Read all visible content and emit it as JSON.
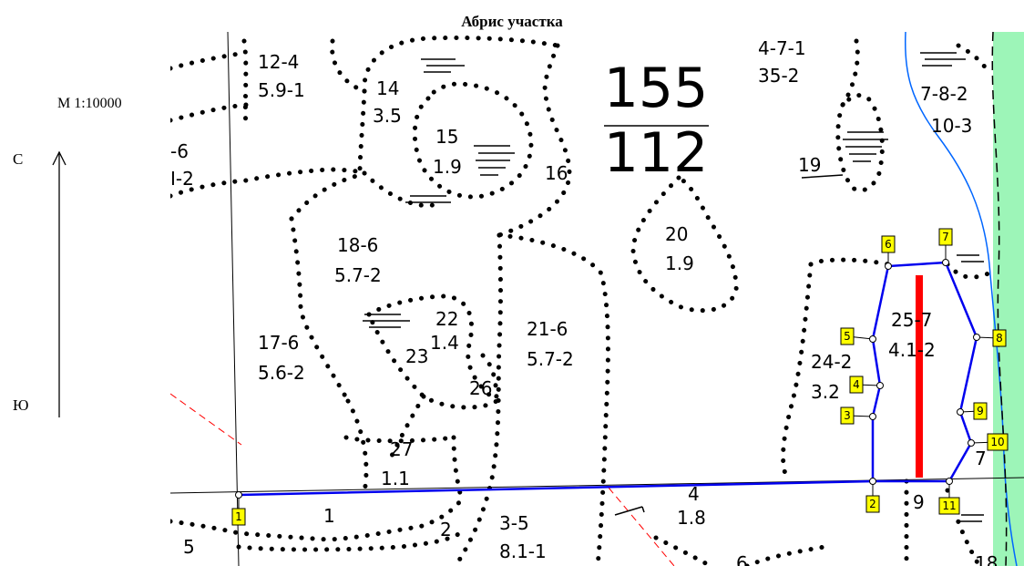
{
  "title": "Абрис участка",
  "scale": "М 1:10000",
  "directions": {
    "north": "С",
    "south": "Ю"
  },
  "plot": {
    "numerator": "155",
    "denominator": "112"
  },
  "colors": {
    "boundary": "#0000ee",
    "marker": "#ff0000",
    "river": "#0066ff",
    "meadow": "#9df5b8",
    "point_fill": "#ffff00"
  },
  "labels": {
    "l124a": "12-4",
    "l124b": "5.9-1",
    "l14a": "14",
    "l14b": "3.5",
    "l15a": "15",
    "l15b": "1.9",
    "l16": "16",
    "l6a": "-6",
    "l6b": "I-2",
    "l471a": "4-7-1",
    "l471b": "35-2",
    "l782a": "7-8-2",
    "l782b": "10-3",
    "l19": "19",
    "l20a": "20",
    "l20b": "1.9",
    "l186a": "18-6",
    "l186b": "5.7-2",
    "l22": "22",
    "l22b": "1.4",
    "l23": "23",
    "l216a": "21-6",
    "l216b": "5.7-2",
    "l176a": "17-6",
    "l176b": "5.6-2",
    "l26": "26",
    "l257a": "25-7",
    "l257b": "4.1-2",
    "l242a": "24-2",
    "l242b": "3.2",
    "l27a": "27",
    "l27b": "1.1",
    "l1": "1",
    "l2": "2",
    "l35a": "3-5",
    "l35b": "8.1-1",
    "l4a": "4",
    "l4b": "1.8",
    "l5": "5",
    "l9": "9",
    "l7": "7",
    "l6bot": "6",
    "l18": "18"
  },
  "points": [
    "1",
    "2",
    "3",
    "4",
    "5",
    "6",
    "7",
    "8",
    "9",
    "10",
    "11"
  ]
}
